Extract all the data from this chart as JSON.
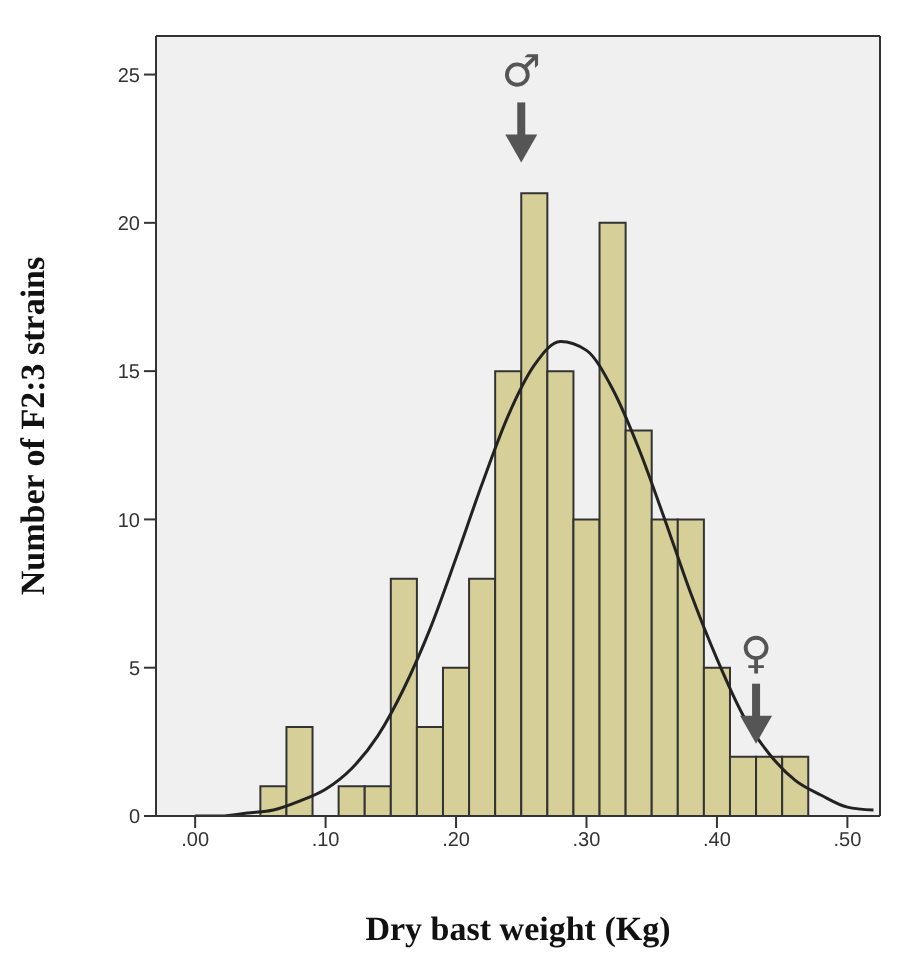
{
  "chart_data": {
    "type": "histogram",
    "xlabel": "Dry bast weight (Kg)",
    "ylabel": "Number of F2:3 strains",
    "bins": [
      0.05,
      0.07,
      0.09,
      0.11,
      0.13,
      0.15,
      0.17,
      0.19,
      0.21,
      0.23,
      0.25,
      0.27,
      0.29,
      0.31,
      0.33,
      0.35,
      0.37,
      0.39,
      0.41,
      0.43,
      0.45,
      0.47
    ],
    "series": [
      {
        "color": "#d6cf97",
        "values": [
          1,
          3,
          0,
          1,
          1,
          8,
          3,
          5,
          8,
          15,
          21,
          15,
          10,
          20,
          13,
          10,
          10,
          5,
          2,
          2,
          2
        ]
      },
      {
        "type": "line",
        "color": "#222222",
        "x": [
          0,
          0.02,
          0.04,
          0.06,
          0.08,
          0.1,
          0.12,
          0.14,
          0.16,
          0.18,
          0.2,
          0.22,
          0.24,
          0.26,
          0.28,
          0.3,
          0.32,
          0.34,
          0.36,
          0.38,
          0.4,
          0.42,
          0.44,
          0.46,
          0.48,
          0.5,
          0.52
        ],
        "values": [
          0,
          0,
          0.1,
          0.2,
          0.5,
          0.9,
          1.6,
          2.7,
          4.3,
          6.3,
          8.7,
          11.2,
          13.5,
          15.2,
          16,
          15.7,
          14.4,
          12.4,
          10,
          7.5,
          5.3,
          3.4,
          2.1,
          1.2,
          0.7,
          0.3,
          0.2
        ]
      }
    ],
    "xlim": [
      -0.03,
      0.525
    ],
    "xticks": [
      {
        "value": 0,
        "label": ".00"
      },
      {
        "value": 0.1,
        "label": ".10"
      },
      {
        "value": 0.2,
        "label": ".20"
      },
      {
        "value": 0.3,
        "label": ".30"
      },
      {
        "value": 0.4,
        "label": ".40"
      },
      {
        "value": 0.5,
        "label": ".50"
      }
    ],
    "ylim": [
      0,
      26.3
    ],
    "yticks": [
      0,
      5,
      10,
      15,
      20,
      25
    ],
    "annotations": [
      "♂",
      "♀"
    ],
    "marker": "none",
    "line_style": "solid"
  }
}
